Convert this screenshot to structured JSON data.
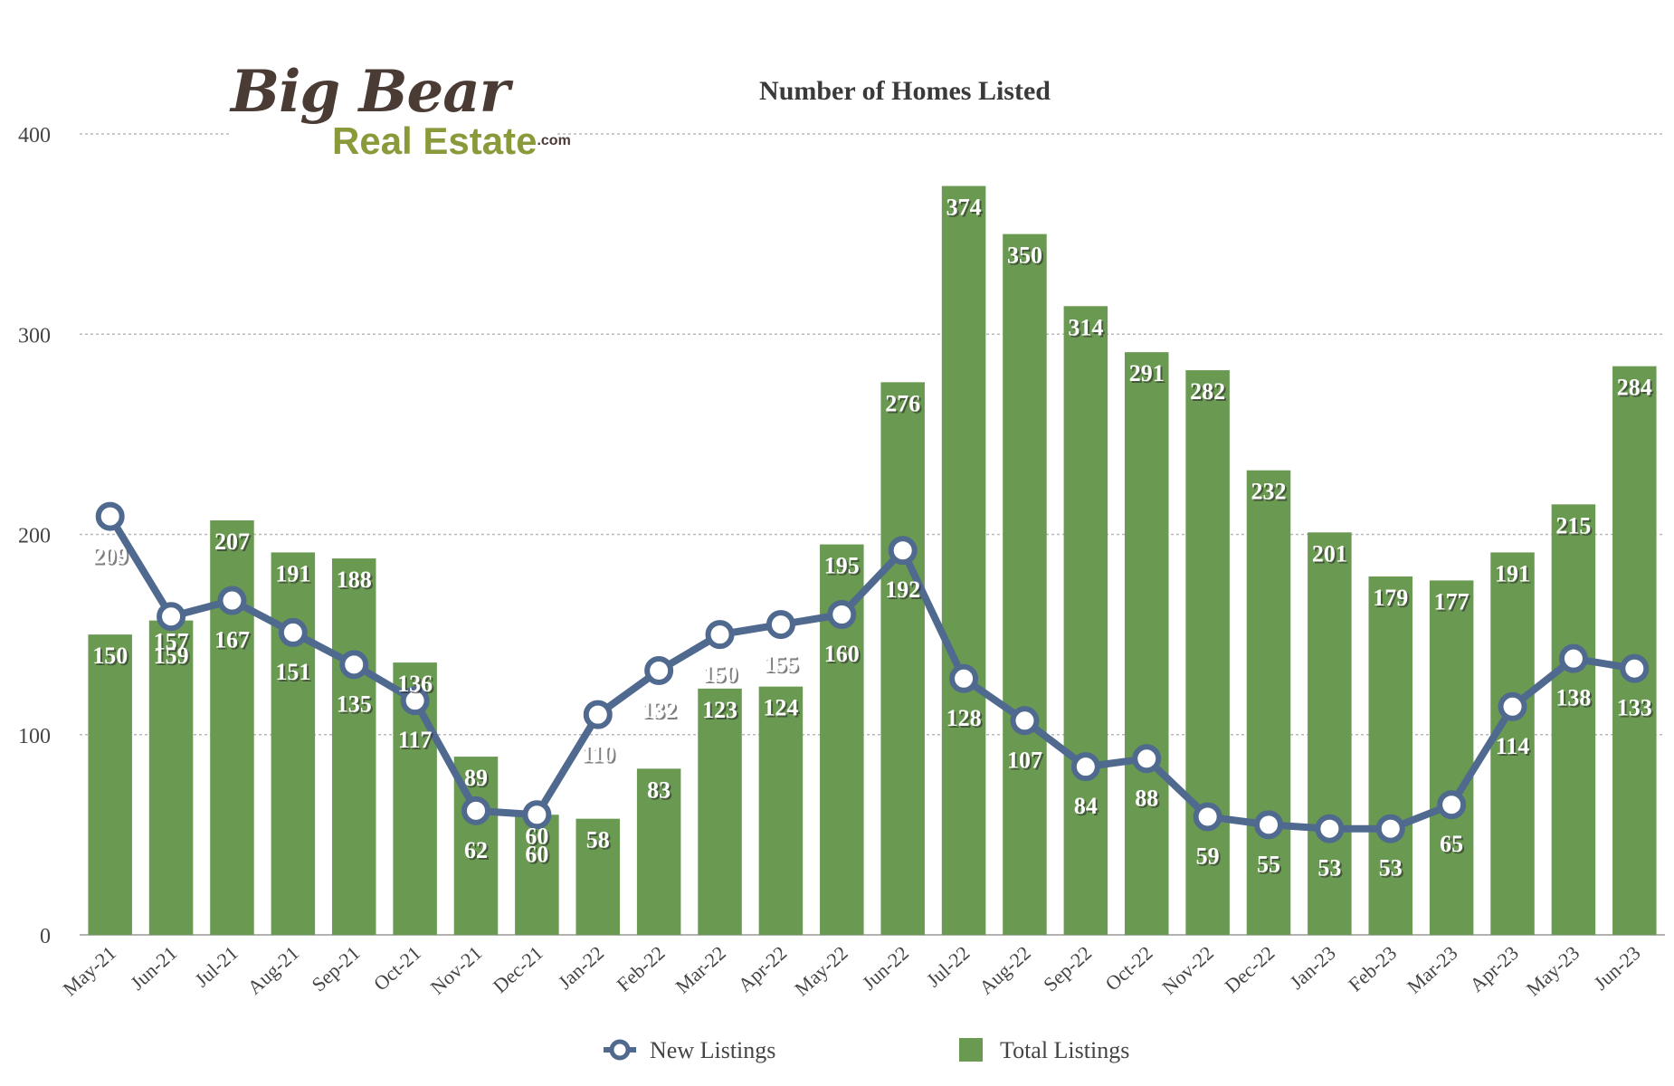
{
  "chart_data": {
    "type": "bar",
    "title": "Number of Homes Listed",
    "xlabel": "",
    "ylabel": "",
    "ylim": [
      0,
      400
    ],
    "yticks": [
      0,
      100,
      200,
      300,
      400
    ],
    "grid": true,
    "legend_position": "bottom",
    "categories": [
      "May-21",
      "Jun-21",
      "Jul-21",
      "Aug-21",
      "Sep-21",
      "Oct-21",
      "Nov-21",
      "Dec-21",
      "Jan-22",
      "Feb-22",
      "Mar-22",
      "Apr-22",
      "May-22",
      "Jun-22",
      "Jul-22",
      "Aug-22",
      "Sep-22",
      "Oct-22",
      "Nov-22",
      "Dec-22",
      "Jan-23",
      "Feb-23",
      "Mar-23",
      "Apr-23",
      "May-23",
      "Jun-23"
    ],
    "series": [
      {
        "name": "Total Listings",
        "type": "bar",
        "color": "#6a9a52",
        "values": [
          150,
          157,
          207,
          191,
          188,
          136,
          89,
          60,
          58,
          83,
          123,
          124,
          195,
          276,
          374,
          350,
          314,
          291,
          282,
          232,
          201,
          179,
          177,
          191,
          215,
          284
        ]
      },
      {
        "name": "New Listings",
        "type": "line",
        "color": "#50698f",
        "values": [
          209,
          159,
          167,
          151,
          135,
          117,
          62,
          60,
          110,
          132,
          150,
          155,
          160,
          192,
          128,
          107,
          84,
          88,
          59,
          55,
          53,
          53,
          65,
          114,
          138,
          133
        ]
      }
    ]
  },
  "logo": {
    "line1": "Big Bear",
    "line2": "Real Estate",
    "suffix": ".com"
  }
}
